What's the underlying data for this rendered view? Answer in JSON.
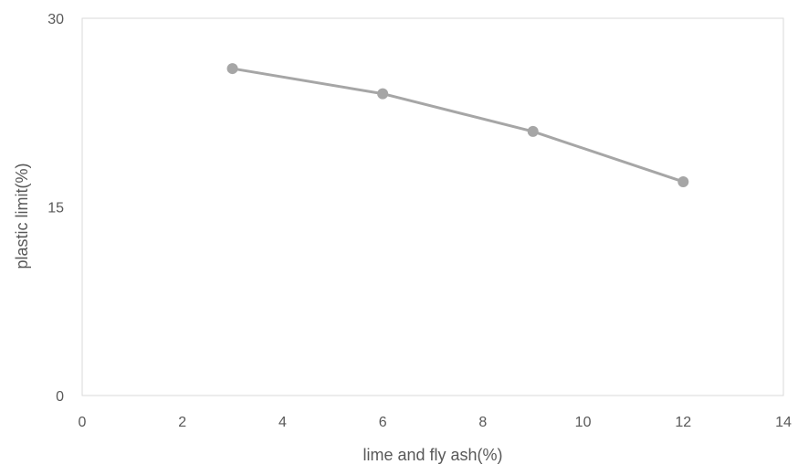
{
  "chart_data": {
    "type": "line",
    "title": "",
    "xlabel": "lime and fly ash(%)",
    "ylabel": "plastic limit(%)",
    "xlim": [
      0,
      14
    ],
    "ylim": [
      0,
      30
    ],
    "x_ticks": [
      0,
      2,
      4,
      6,
      8,
      10,
      12,
      14
    ],
    "y_ticks": [
      0,
      15,
      30
    ],
    "grid": false,
    "legend": "none",
    "series": [
      {
        "x": [
          3,
          6,
          9,
          12
        ],
        "values": [
          26,
          24,
          21,
          17
        ],
        "color": "#a6a6a6"
      }
    ],
    "colors": {
      "series": "#a6a6a6",
      "axis": "#d9d9d9",
      "frame": "#d9d9d9",
      "text": "#595959"
    }
  }
}
